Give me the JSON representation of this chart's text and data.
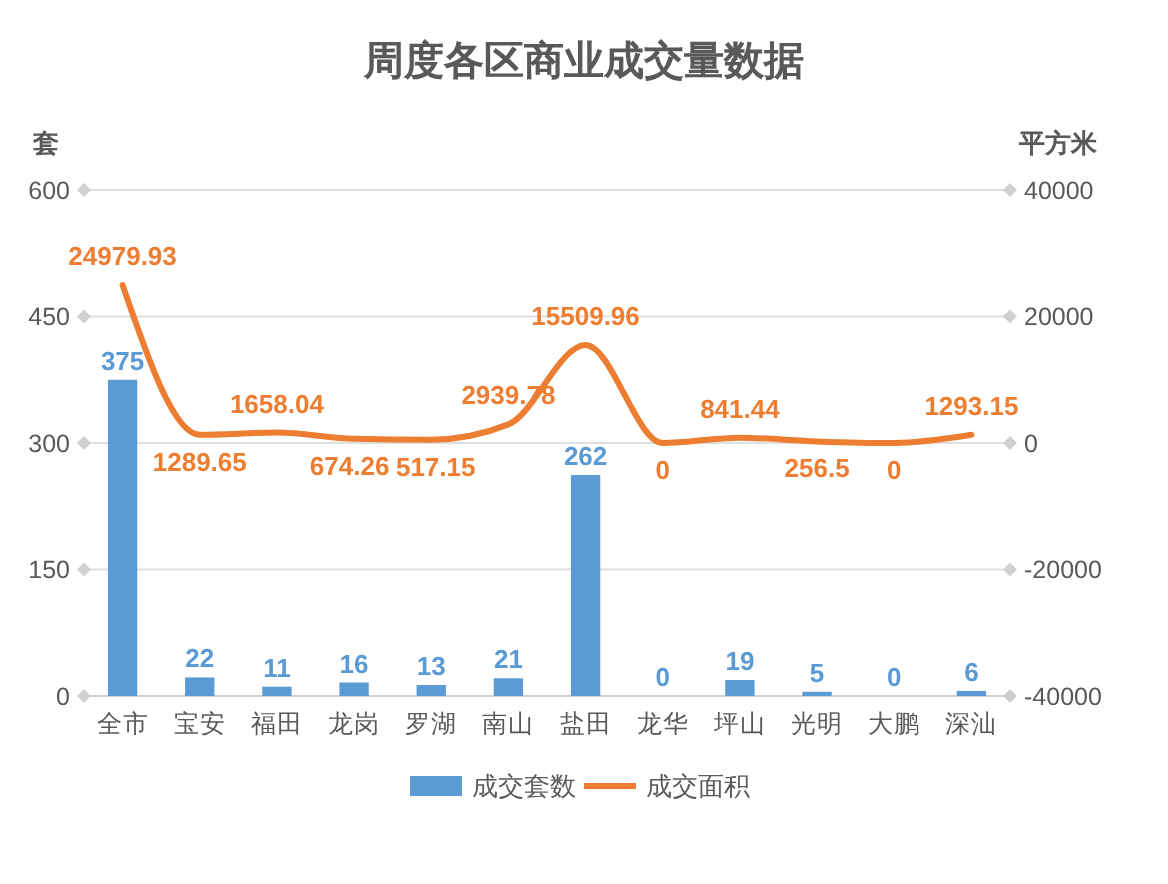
{
  "chart_data": {
    "type": "bar",
    "title": "周度各区商业成交量数据",
    "ylabel": "套",
    "y2label": "平方米",
    "categories": [
      "全市",
      "宝安",
      "福田",
      "龙岗",
      "罗湖",
      "南山",
      "盐田",
      "龙华",
      "坪山",
      "光明",
      "大鹏",
      "深汕"
    ],
    "series": [
      {
        "name": "成交套数",
        "color": "#5b9bd5",
        "values": [
          375,
          22,
          11,
          16,
          13,
          21,
          262,
          0,
          19,
          5,
          0,
          6
        ]
      },
      {
        "name": "成交面积",
        "type": "line",
        "axis": "y2",
        "color": "#ed7d31",
        "values": [
          24979.93,
          1289.65,
          1658.04,
          674.26,
          517.15,
          2939.78,
          15509.96,
          0,
          841.44,
          256.5,
          0,
          1293.15
        ]
      }
    ],
    "ylim": [
      0,
      600
    ],
    "yticks": [
      0,
      150,
      300,
      450,
      600
    ],
    "y2lim": [
      -40000,
      40000
    ],
    "y2ticks": [
      -40000,
      -20000,
      0,
      20000,
      40000
    ],
    "grid": "y",
    "legend": "bottom",
    "data_labels": true
  }
}
